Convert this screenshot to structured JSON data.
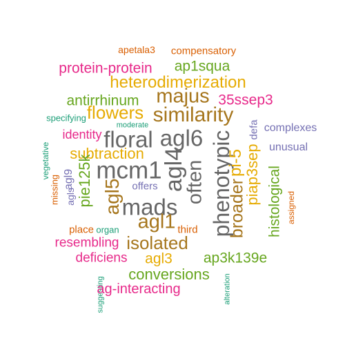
{
  "colors": {
    "teal": "#1b9e77",
    "orange": "#d95f02",
    "purple": "#7570b3",
    "magenta": "#e7298a",
    "green": "#66a61e",
    "gold": "#e6ab02",
    "brown": "#a6761d",
    "gray": "#666666"
  },
  "words": [
    {
      "text": "apetala3",
      "color": "orange",
      "vertical": false
    },
    {
      "text": "compensatory",
      "color": "orange",
      "vertical": false
    },
    {
      "text": "protein-protein",
      "color": "magenta",
      "vertical": false
    },
    {
      "text": "ap1squa",
      "color": "green",
      "vertical": false
    },
    {
      "text": "heterodimerization",
      "color": "gold",
      "vertical": false
    },
    {
      "text": "antirrhinum",
      "color": "green",
      "vertical": false
    },
    {
      "text": "majus",
      "color": "brown",
      "vertical": false
    },
    {
      "text": "35ssep3",
      "color": "magenta",
      "vertical": false
    },
    {
      "text": "flowers",
      "color": "gold",
      "vertical": false
    },
    {
      "text": "similarity",
      "color": "brown",
      "vertical": false
    },
    {
      "text": "specifying",
      "color": "teal",
      "vertical": false
    },
    {
      "text": "moderate",
      "color": "teal",
      "vertical": false
    },
    {
      "text": "complexes",
      "color": "purple",
      "vertical": false
    },
    {
      "text": "identity",
      "color": "magenta",
      "vertical": false
    },
    {
      "text": "floral",
      "color": "gray",
      "vertical": false
    },
    {
      "text": "agl6",
      "color": "gray",
      "vertical": false
    },
    {
      "text": "defa",
      "color": "purple",
      "vertical": true
    },
    {
      "text": "unusual",
      "color": "purple",
      "vertical": false
    },
    {
      "text": "subtraction",
      "color": "gold",
      "vertical": false
    },
    {
      "text": "phenotypic",
      "color": "gray",
      "vertical": true
    },
    {
      "text": "pi-5",
      "color": "gold",
      "vertical": true
    },
    {
      "text": "piap3sep",
      "color": "gold",
      "vertical": true
    },
    {
      "text": "vegetative",
      "color": "teal",
      "vertical": true
    },
    {
      "text": "mcm1",
      "color": "gray",
      "vertical": false
    },
    {
      "text": "agl4",
      "color": "gray",
      "vertical": true
    },
    {
      "text": "often",
      "color": "gray",
      "vertical": true
    },
    {
      "text": "pie125k",
      "color": "green",
      "vertical": true
    },
    {
      "text": "agl9",
      "color": "purple",
      "vertical": true
    },
    {
      "text": "missing",
      "color": "orange",
      "vertical": true
    },
    {
      "text": "agls",
      "color": "purple",
      "vertical": true
    },
    {
      "text": "agl5",
      "color": "brown",
      "vertical": true
    },
    {
      "text": "offers",
      "color": "purple",
      "vertical": false
    },
    {
      "text": "broader",
      "color": "brown",
      "vertical": true
    },
    {
      "text": "histological",
      "color": "green",
      "vertical": true
    },
    {
      "text": "assigned",
      "color": "orange",
      "vertical": true
    },
    {
      "text": "mads",
      "color": "gray",
      "vertical": false
    },
    {
      "text": "agl1",
      "color": "brown",
      "vertical": false
    },
    {
      "text": "place",
      "color": "orange",
      "vertical": false
    },
    {
      "text": "organ",
      "color": "teal",
      "vertical": false
    },
    {
      "text": "third",
      "color": "orange",
      "vertical": false
    },
    {
      "text": "resembling",
      "color": "magenta",
      "vertical": false
    },
    {
      "text": "isolated",
      "color": "brown",
      "vertical": false
    },
    {
      "text": "deficiens",
      "color": "magenta",
      "vertical": false
    },
    {
      "text": "agl3",
      "color": "gold",
      "vertical": false
    },
    {
      "text": "ap3k139e",
      "color": "green",
      "vertical": false
    },
    {
      "text": "conversions",
      "color": "green",
      "vertical": false
    },
    {
      "text": "suggesting",
      "color": "teal",
      "vertical": true
    },
    {
      "text": "alteration",
      "color": "teal",
      "vertical": true
    },
    {
      "text": "ag-interacting",
      "color": "magenta",
      "vertical": false
    }
  ]
}
